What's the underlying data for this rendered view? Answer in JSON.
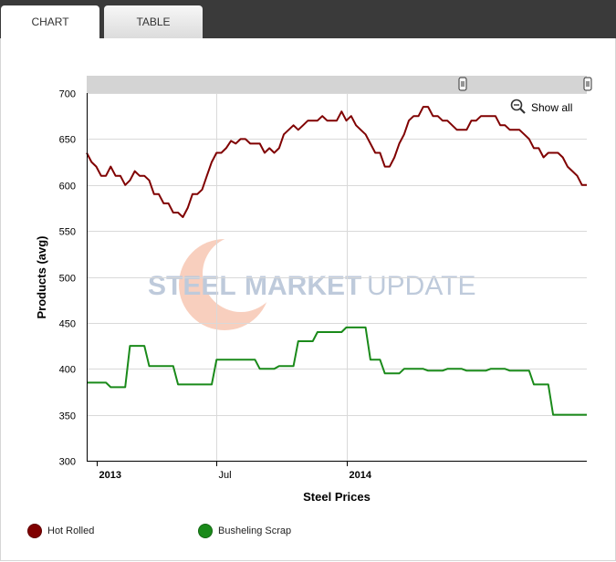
{
  "tabs": [
    {
      "label": "CHART",
      "active": true
    },
    {
      "label": "TABLE",
      "active": false
    }
  ],
  "zoom": {
    "label": "Show all"
  },
  "watermark": {
    "word1": "STEEL",
    "word2": "MARKET",
    "word3": "UPDATE"
  },
  "colors": {
    "hot_rolled": "#800000",
    "busheling_scrap": "#1a8a1a",
    "grid": "#d9d9d9"
  },
  "chart_data": {
    "type": "line",
    "title": "",
    "xlabel": "Steel Prices",
    "ylabel": "Products (avg)",
    "ylim": [
      300,
      700
    ],
    "yticks": [
      300,
      350,
      400,
      450,
      500,
      550,
      600,
      650,
      700
    ],
    "xrange": [
      "2012-12-24",
      "2014-12-22"
    ],
    "xticks": [
      {
        "label": "2013",
        "date": "2013-01-07",
        "bold": true
      },
      {
        "label": "Jul",
        "date": "2013-07-01",
        "bold": false
      },
      {
        "label": "2014",
        "date": "2014-01-06",
        "bold": true
      }
    ],
    "grid": true,
    "legend_position": "bottom-left",
    "series": [
      {
        "name": "Hot Rolled",
        "color": "#800000",
        "points": [
          [
            "2012-12-24",
            635
          ],
          [
            "2012-12-31",
            625
          ],
          [
            "2013-01-07",
            620
          ],
          [
            "2013-01-14",
            610
          ],
          [
            "2013-01-21",
            610
          ],
          [
            "2013-01-28",
            620
          ],
          [
            "2013-02-04",
            610
          ],
          [
            "2013-02-11",
            610
          ],
          [
            "2013-02-18",
            600
          ],
          [
            "2013-02-25",
            605
          ],
          [
            "2013-03-04",
            615
          ],
          [
            "2013-03-11",
            610
          ],
          [
            "2013-03-18",
            610
          ],
          [
            "2013-03-25",
            605
          ],
          [
            "2013-04-01",
            590
          ],
          [
            "2013-04-08",
            590
          ],
          [
            "2013-04-15",
            580
          ],
          [
            "2013-04-22",
            580
          ],
          [
            "2013-04-29",
            570
          ],
          [
            "2013-05-06",
            570
          ],
          [
            "2013-05-13",
            565
          ],
          [
            "2013-05-20",
            575
          ],
          [
            "2013-05-27",
            590
          ],
          [
            "2013-06-03",
            590
          ],
          [
            "2013-06-10",
            595
          ],
          [
            "2013-06-17",
            610
          ],
          [
            "2013-06-24",
            625
          ],
          [
            "2013-07-01",
            635
          ],
          [
            "2013-07-08",
            635
          ],
          [
            "2013-07-15",
            640
          ],
          [
            "2013-07-22",
            648
          ],
          [
            "2013-07-29",
            645
          ],
          [
            "2013-08-05",
            650
          ],
          [
            "2013-08-12",
            650
          ],
          [
            "2013-08-19",
            645
          ],
          [
            "2013-08-26",
            645
          ],
          [
            "2013-09-02",
            645
          ],
          [
            "2013-09-09",
            635
          ],
          [
            "2013-09-16",
            640
          ],
          [
            "2013-09-23",
            635
          ],
          [
            "2013-09-30",
            640
          ],
          [
            "2013-10-07",
            655
          ],
          [
            "2013-10-14",
            660
          ],
          [
            "2013-10-21",
            665
          ],
          [
            "2013-10-28",
            660
          ],
          [
            "2013-11-04",
            665
          ],
          [
            "2013-11-11",
            670
          ],
          [
            "2013-11-18",
            670
          ],
          [
            "2013-11-25",
            670
          ],
          [
            "2013-12-02",
            675
          ],
          [
            "2013-12-09",
            670
          ],
          [
            "2013-12-16",
            670
          ],
          [
            "2013-12-23",
            670
          ],
          [
            "2013-12-30",
            680
          ],
          [
            "2014-01-06",
            670
          ],
          [
            "2014-01-13",
            675
          ],
          [
            "2014-01-20",
            665
          ],
          [
            "2014-01-27",
            660
          ],
          [
            "2014-02-03",
            655
          ],
          [
            "2014-02-10",
            645
          ],
          [
            "2014-02-17",
            635
          ],
          [
            "2014-02-24",
            635
          ],
          [
            "2014-03-03",
            620
          ],
          [
            "2014-03-10",
            620
          ],
          [
            "2014-03-17",
            630
          ],
          [
            "2014-03-24",
            645
          ],
          [
            "2014-03-31",
            655
          ],
          [
            "2014-04-07",
            670
          ],
          [
            "2014-04-14",
            675
          ],
          [
            "2014-04-21",
            675
          ],
          [
            "2014-04-28",
            685
          ],
          [
            "2014-05-05",
            685
          ],
          [
            "2014-05-12",
            675
          ],
          [
            "2014-05-19",
            675
          ],
          [
            "2014-05-26",
            670
          ],
          [
            "2014-06-02",
            670
          ],
          [
            "2014-06-09",
            665
          ],
          [
            "2014-06-16",
            660
          ],
          [
            "2014-06-23",
            660
          ],
          [
            "2014-06-30",
            660
          ],
          [
            "2014-07-07",
            670
          ],
          [
            "2014-07-14",
            670
          ],
          [
            "2014-07-21",
            675
          ],
          [
            "2014-07-28",
            675
          ],
          [
            "2014-08-04",
            675
          ],
          [
            "2014-08-11",
            675
          ],
          [
            "2014-08-18",
            665
          ],
          [
            "2014-08-25",
            665
          ],
          [
            "2014-09-01",
            660
          ],
          [
            "2014-09-08",
            660
          ],
          [
            "2014-09-15",
            660
          ],
          [
            "2014-09-22",
            655
          ],
          [
            "2014-09-29",
            650
          ],
          [
            "2014-10-06",
            640
          ],
          [
            "2014-10-13",
            640
          ],
          [
            "2014-10-20",
            630
          ],
          [
            "2014-10-27",
            635
          ],
          [
            "2014-11-03",
            635
          ],
          [
            "2014-11-10",
            635
          ],
          [
            "2014-11-17",
            630
          ],
          [
            "2014-11-24",
            620
          ],
          [
            "2014-12-01",
            615
          ],
          [
            "2014-12-08",
            610
          ],
          [
            "2014-12-15",
            600
          ],
          [
            "2014-12-22",
            600
          ]
        ]
      },
      {
        "name": "Busheling Scrap",
        "color": "#1a8a1a",
        "points": [
          [
            "2012-12-24",
            385
          ],
          [
            "2013-01-21",
            385
          ],
          [
            "2013-01-28",
            380
          ],
          [
            "2013-02-11",
            380
          ],
          [
            "2013-02-18",
            380
          ],
          [
            "2013-02-25",
            425
          ],
          [
            "2013-03-18",
            425
          ],
          [
            "2013-03-25",
            403
          ],
          [
            "2013-04-29",
            403
          ],
          [
            "2013-05-06",
            383
          ],
          [
            "2013-06-24",
            383
          ],
          [
            "2013-07-01",
            410
          ],
          [
            "2013-08-26",
            410
          ],
          [
            "2013-09-02",
            400
          ],
          [
            "2013-09-23",
            400
          ],
          [
            "2013-09-30",
            403
          ],
          [
            "2013-10-21",
            403
          ],
          [
            "2013-10-28",
            430
          ],
          [
            "2013-11-18",
            430
          ],
          [
            "2013-11-25",
            440
          ],
          [
            "2013-12-30",
            440
          ],
          [
            "2014-01-06",
            445
          ],
          [
            "2014-02-03",
            445
          ],
          [
            "2014-02-10",
            410
          ],
          [
            "2014-02-24",
            410
          ],
          [
            "2014-03-03",
            395
          ],
          [
            "2014-03-24",
            395
          ],
          [
            "2014-03-31",
            400
          ],
          [
            "2014-04-28",
            400
          ],
          [
            "2014-05-05",
            398
          ],
          [
            "2014-05-26",
            398
          ],
          [
            "2014-06-02",
            400
          ],
          [
            "2014-06-23",
            400
          ],
          [
            "2014-06-30",
            398
          ],
          [
            "2014-07-28",
            398
          ],
          [
            "2014-08-04",
            400
          ],
          [
            "2014-08-25",
            400
          ],
          [
            "2014-09-01",
            398
          ],
          [
            "2014-09-29",
            398
          ],
          [
            "2014-10-06",
            383
          ],
          [
            "2014-10-27",
            383
          ],
          [
            "2014-11-03",
            350
          ],
          [
            "2014-12-22",
            350
          ]
        ]
      }
    ]
  }
}
